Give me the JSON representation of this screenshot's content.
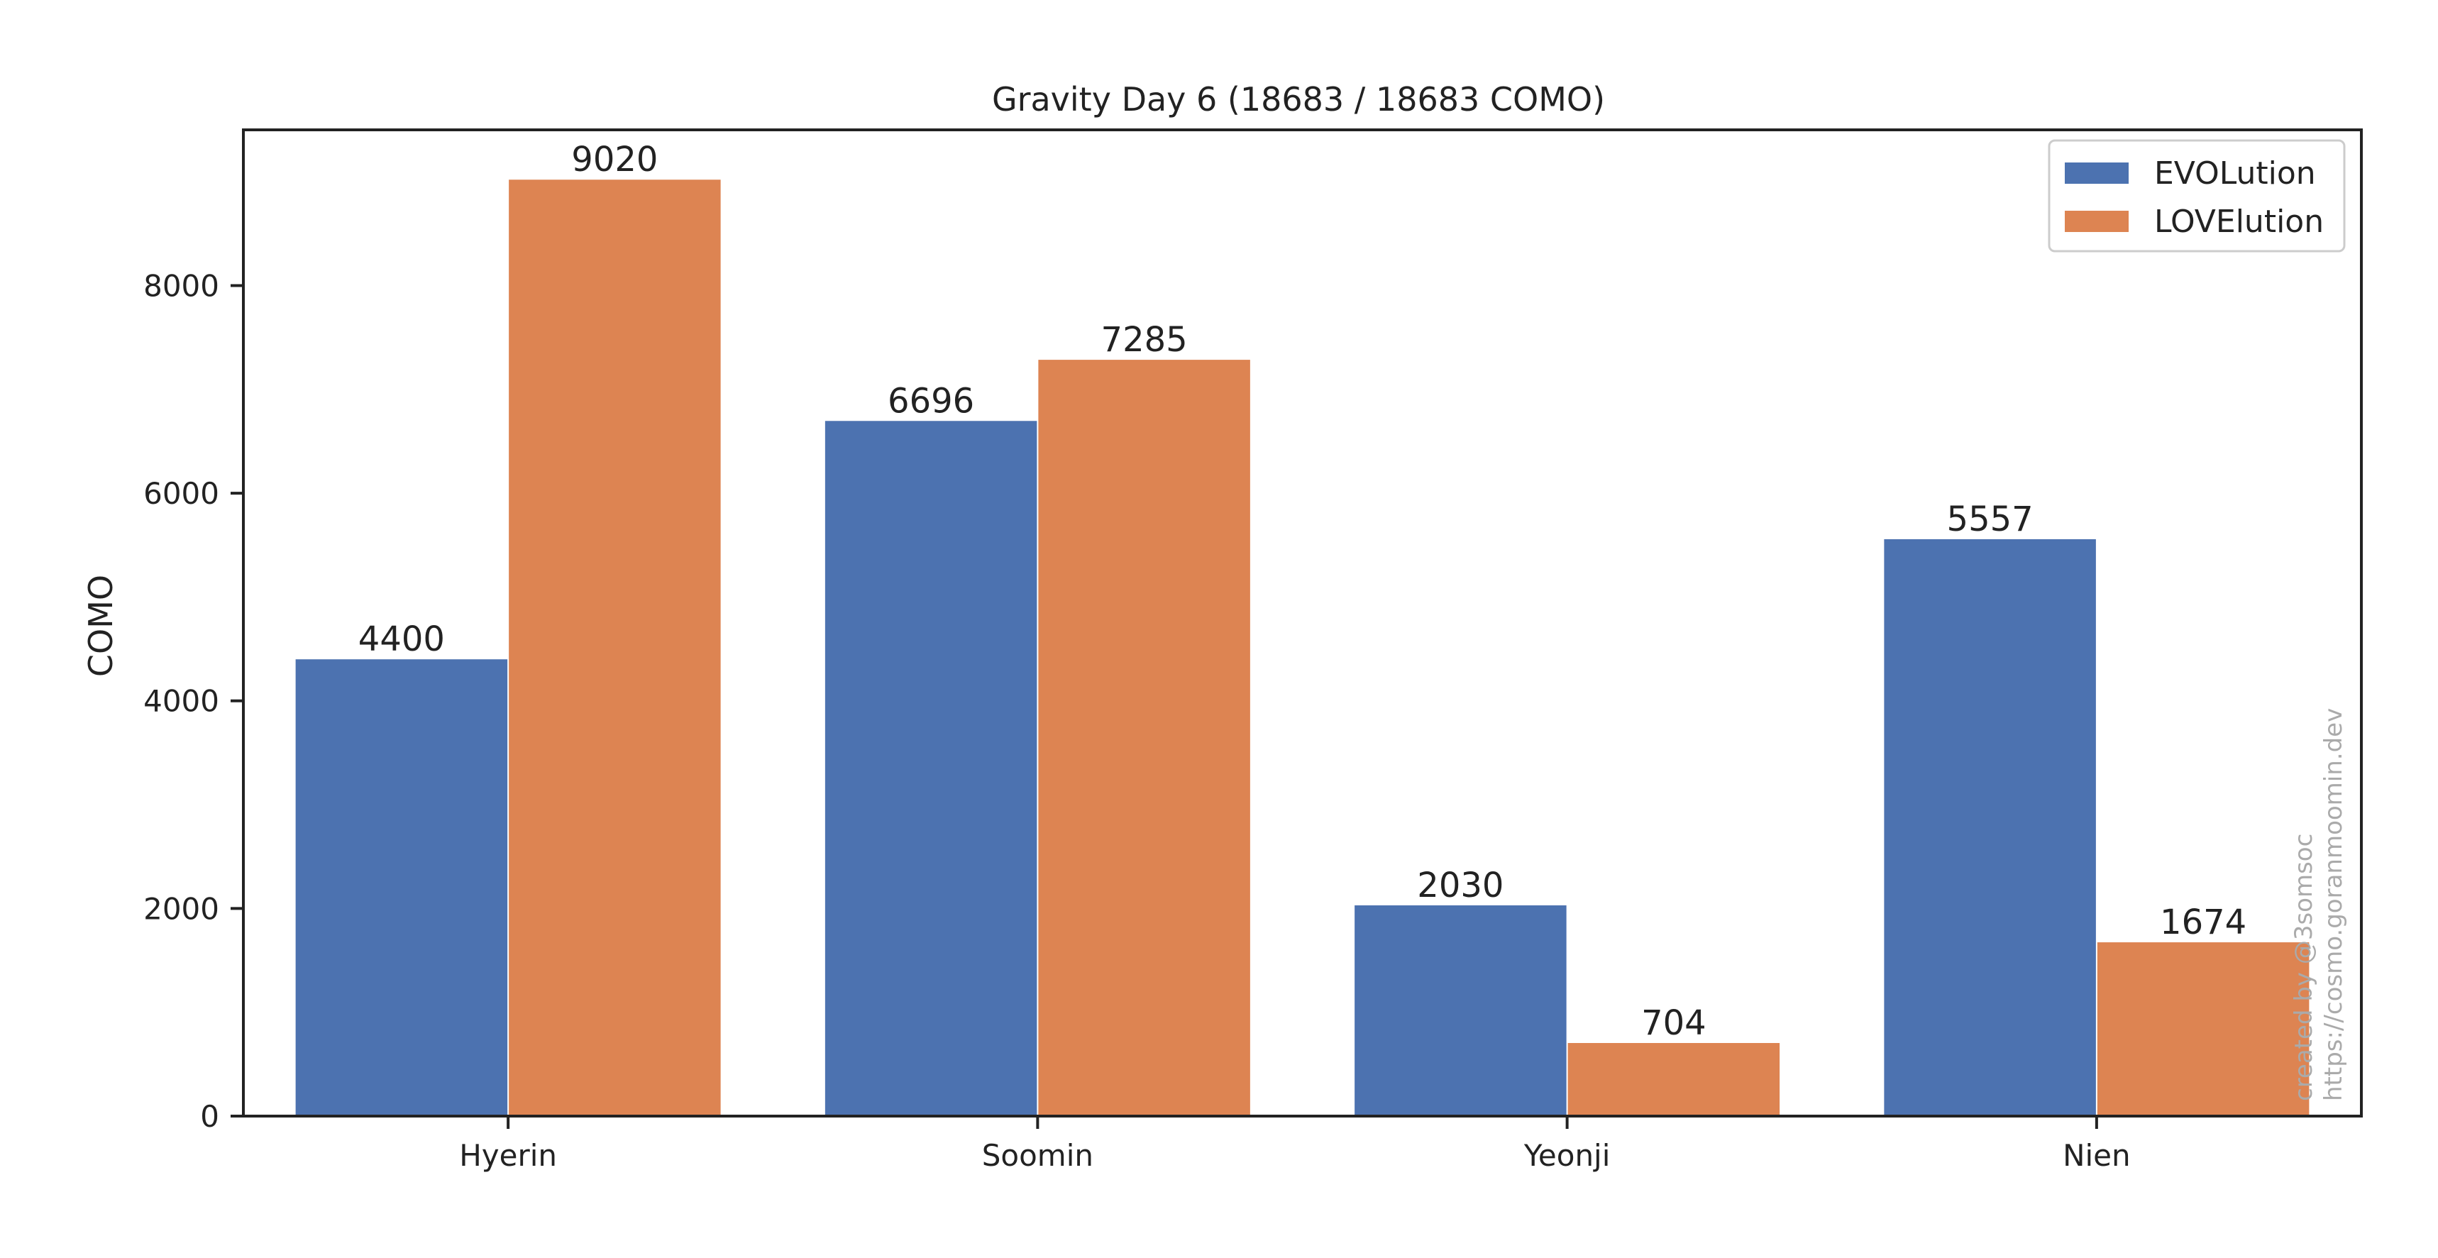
{
  "chart_data": {
    "type": "bar",
    "title": "Gravity Day 6 (18683 / 18683 COMO)",
    "xlabel": "",
    "ylabel": "COMO",
    "categories": [
      "Hyerin",
      "Soomin",
      "Yeonji",
      "Nien"
    ],
    "series": [
      {
        "name": "EVOLution",
        "color": "#4c72b0",
        "values": [
          4400,
          6696,
          2030,
          5557
        ]
      },
      {
        "name": "LOVElution",
        "color": "#dd8452",
        "values": [
          9020,
          7285,
          704,
          1674
        ]
      }
    ],
    "data_labels": [
      [
        "4400",
        "6696",
        "2030",
        "5557"
      ],
      [
        "9020",
        "7285",
        "704",
        "1674"
      ]
    ],
    "ylim": [
      0,
      9500
    ],
    "yticks": [
      0,
      2000,
      4000,
      6000,
      8000
    ],
    "ytick_labels": [
      "0",
      "2000",
      "4000",
      "6000",
      "8000"
    ],
    "grid": false,
    "legend": "top-right",
    "watermark": [
      "created by @3somsoc",
      "https://cosmo.goranmoomin.dev"
    ]
  }
}
